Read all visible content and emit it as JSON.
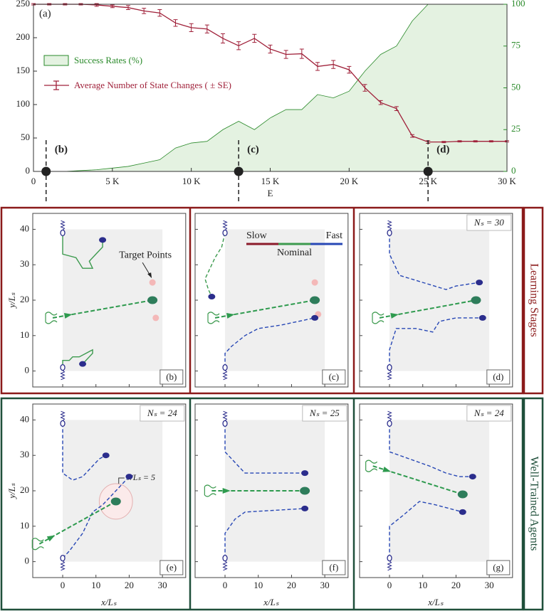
{
  "chart_data": [
    {
      "type": "line",
      "label": "(a)",
      "xlabel": "E",
      "xlim": [
        0,
        30000
      ],
      "xticks": [
        0,
        {
          "value": 5000,
          "label": "5 K"
        },
        {
          "value": 10000,
          "label": "10 K"
        },
        {
          "value": 15000,
          "label": "15 K"
        },
        {
          "value": 20000,
          "label": "20 K"
        },
        {
          "value": 25000,
          "label": "25 K"
        },
        {
          "value": 30000,
          "label": "30 K"
        }
      ],
      "ylim": [
        0,
        250
      ],
      "yticks": [
        0,
        50,
        100,
        150,
        200,
        250
      ],
      "y2lim": [
        0,
        100
      ],
      "y2ticks": [
        0,
        25,
        50,
        75,
        100
      ],
      "x": [
        0,
        1000,
        2000,
        3000,
        4000,
        5000,
        6000,
        7000,
        8000,
        9000,
        10000,
        11000,
        12000,
        13000,
        14000,
        15000,
        16000,
        17000,
        18000,
        19000,
        20000,
        21000,
        22000,
        23000,
        24000,
        25000,
        26000,
        27000,
        28000,
        29000,
        30000
      ],
      "series": [
        {
          "name": "Success Rates (%)",
          "type": "area",
          "axis": "y2",
          "color": "#2a8a2a",
          "fill": "#e4f2e1",
          "values": [
            0,
            0,
            0,
            0.5,
            1,
            2,
            3,
            5,
            7,
            14,
            17,
            18,
            25,
            30,
            25,
            32,
            37,
            37,
            46,
            44,
            48,
            60,
            70,
            75,
            90,
            100,
            100,
            100,
            100,
            100,
            100
          ]
        },
        {
          "name": "Average Number of State Changes ( ± SE)",
          "type": "line",
          "color": "#a0213a",
          "values": [
            250,
            250,
            250,
            250,
            249,
            247,
            245,
            240,
            237,
            222,
            215,
            213,
            199,
            188,
            199,
            183,
            175,
            176,
            157,
            160,
            152,
            125,
            103,
            94,
            53,
            44,
            44,
            45,
            45,
            45,
            45
          ],
          "errors": [
            1,
            1,
            1,
            1,
            2,
            2,
            3,
            4,
            5,
            5,
            6,
            6,
            7,
            6,
            6,
            6,
            6,
            7,
            6,
            6,
            5,
            5,
            3,
            3,
            2,
            2,
            1,
            1,
            1,
            1,
            1
          ]
        }
      ],
      "markers": [
        {
          "label": "(b)",
          "x": 800
        },
        {
          "label": "(c)",
          "x": 13000
        },
        {
          "label": "(d)",
          "x": 25000
        }
      ]
    },
    {
      "type": "trajectory",
      "label": "(b)",
      "xlim": [
        -9,
        37
      ],
      "ylim": [
        -4.5,
        44.5
      ],
      "xticks": [
        0,
        10,
        20,
        30
      ],
      "yticks": [
        0,
        10,
        20,
        30,
        40
      ],
      "annotation": "Target Points",
      "paths": [
        {
          "color": "#3c9a4e",
          "dashed": false,
          "points": [
            [
              0,
              39
            ],
            [
              0,
              33
            ],
            [
              4,
              32
            ],
            [
              6,
              29
            ],
            [
              9,
              29
            ],
            [
              8,
              31
            ],
            [
              10,
              33
            ],
            [
              12,
              35
            ],
            [
              12,
              37
            ]
          ]
        },
        {
          "color": "#3c9a4e",
          "dashed": false,
          "points": [
            [
              0,
              1
            ],
            [
              0,
              3
            ],
            [
              2,
              3
            ],
            [
              3,
              4
            ],
            [
              5,
              4
            ],
            [
              7,
              5
            ],
            [
              9,
              6
            ],
            [
              9,
              5
            ],
            [
              8,
              4
            ],
            [
              6,
              2
            ]
          ]
        }
      ],
      "anchors": [
        [
          0,
          39
        ],
        [
          0,
          1
        ]
      ],
      "agents": [
        [
          12,
          37
        ],
        [
          6,
          2
        ]
      ],
      "target_line": [
        [
          -3,
          15
        ],
        [
          27,
          20
        ]
      ],
      "target": [
        27,
        20
      ],
      "target_points": [
        [
          27,
          25
        ],
        [
          28,
          15
        ]
      ]
    },
    {
      "type": "trajectory",
      "label": "(c)",
      "xlim": [
        -9,
        37
      ],
      "ylim": [
        -4.5,
        44.5
      ],
      "xticks": [
        0,
        10,
        20,
        30
      ],
      "yticks": [
        0,
        10,
        20,
        30,
        40
      ],
      "speed_legend": {
        "labels": [
          "Slow",
          "Nominal",
          "Fast"
        ],
        "colors": [
          "#8b1a2a",
          "#3c9a4e",
          "#2747b5"
        ]
      },
      "paths": [
        {
          "color": "#3c9a4e",
          "dashed": true,
          "points": [
            [
              0,
              39
            ],
            [
              -1,
              35
            ],
            [
              -3,
              32
            ],
            [
              -5,
              28
            ],
            [
              -6,
              26
            ],
            [
              -5,
              23
            ],
            [
              -4,
              21
            ]
          ]
        },
        {
          "color": "#2747b5",
          "dashed": true,
          "points": [
            [
              0,
              1
            ],
            [
              0,
              5
            ],
            [
              2,
              7
            ],
            [
              6,
              10
            ],
            [
              10,
              12
            ],
            [
              17,
              13
            ],
            [
              27,
              15
            ]
          ]
        }
      ],
      "anchors": [
        [
          0,
          39
        ],
        [
          0,
          1
        ]
      ],
      "agents": [
        [
          -4,
          21
        ],
        [
          27,
          15
        ]
      ],
      "target_line": [
        [
          -3,
          15
        ],
        [
          27,
          20
        ]
      ],
      "target": [
        27,
        20
      ],
      "target_points": [
        [
          27,
          25
        ],
        [
          28,
          16
        ]
      ]
    },
    {
      "type": "trajectory",
      "label": "(d)",
      "ns_label": "Nₛ = 30",
      "xlim": [
        -9,
        37
      ],
      "ylim": [
        -4.5,
        44.5
      ],
      "xticks": [
        0,
        10,
        20,
        30
      ],
      "yticks": [
        0,
        10,
        20,
        30,
        40
      ],
      "paths": [
        {
          "color": "#2747b5",
          "dashed": true,
          "points": [
            [
              0,
              39
            ],
            [
              0,
              33
            ],
            [
              3,
              27
            ],
            [
              10,
              25
            ],
            [
              17,
              23
            ],
            [
              20,
              24
            ],
            [
              27,
              25
            ]
          ]
        },
        {
          "color": "#2747b5",
          "dashed": true,
          "points": [
            [
              0,
              1
            ],
            [
              0,
              6
            ],
            [
              2,
              12
            ],
            [
              8,
              12
            ],
            [
              13,
              11
            ],
            [
              15,
              14
            ],
            [
              20,
              15
            ],
            [
              28,
              15
            ]
          ]
        }
      ],
      "anchors": [
        [
          0,
          39
        ],
        [
          0,
          1
        ]
      ],
      "agents": [
        [
          27,
          25
        ],
        [
          28,
          15
        ]
      ],
      "target_line": [
        [
          -3,
          15
        ],
        [
          26,
          20
        ]
      ],
      "target": [
        26,
        20
      ]
    },
    {
      "type": "trajectory",
      "label": "(e)",
      "ns_label": "Nₛ = 24",
      "xlim": [
        -9,
        37
      ],
      "ylim": [
        -4.5,
        44.5
      ],
      "xticks": [
        0,
        10,
        20,
        30
      ],
      "yticks": [
        0,
        10,
        20,
        30,
        40
      ],
      "radius": 5,
      "radius_label": "r/Lₛ = 5",
      "paths": [
        {
          "color": "#2747b5",
          "dashed": true,
          "points": [
            [
              0,
              39
            ],
            [
              0,
              25
            ],
            [
              3,
              23
            ],
            [
              6,
              24
            ],
            [
              9,
              27
            ],
            [
              11,
              29
            ],
            [
              13,
              30
            ]
          ]
        },
        {
          "color": "#2747b5",
          "dashed": true,
          "points": [
            [
              0,
              1
            ],
            [
              2,
              3
            ],
            [
              6,
              8
            ],
            [
              9,
              14
            ],
            [
              12,
              16
            ],
            [
              15,
              19
            ],
            [
              18,
              22
            ],
            [
              20,
              24
            ]
          ]
        }
      ],
      "anchors": [
        [
          0,
          39
        ],
        [
          0,
          1
        ]
      ],
      "agents": [
        [
          13,
          30
        ],
        [
          20,
          24
        ]
      ],
      "target_line": [
        [
          -7,
          5
        ],
        [
          16,
          17
        ]
      ],
      "target": [
        16,
        17
      ]
    },
    {
      "type": "trajectory",
      "label": "(f)",
      "ns_label": "Nₛ = 25",
      "xlim": [
        -9,
        37
      ],
      "ylim": [
        -4.5,
        44.5
      ],
      "xticks": [
        0,
        10,
        20,
        30
      ],
      "yticks": [
        0,
        10,
        20,
        30,
        40
      ],
      "paths": [
        {
          "color": "#2747b5",
          "dashed": true,
          "points": [
            [
              0,
              39
            ],
            [
              0,
              31
            ],
            [
              2,
              29
            ],
            [
              6,
              25
            ],
            [
              24,
              25
            ]
          ]
        },
        {
          "color": "#2747b5",
          "dashed": true,
          "points": [
            [
              0,
              1
            ],
            [
              0,
              8
            ],
            [
              3,
              12
            ],
            [
              6,
              14
            ],
            [
              24,
              15
            ]
          ]
        }
      ],
      "anchors": [
        [
          0,
          39
        ],
        [
          0,
          1
        ]
      ],
      "agents": [
        [
          24,
          25
        ],
        [
          24,
          15
        ]
      ],
      "target_line": [
        [
          -4,
          20
        ],
        [
          24,
          20
        ]
      ],
      "target": [
        24,
        20
      ]
    },
    {
      "type": "trajectory",
      "label": "(g)",
      "ns_label": "Nₛ = 24",
      "xlim": [
        -9,
        37
      ],
      "ylim": [
        -4.5,
        44.5
      ],
      "xticks": [
        0,
        10,
        20,
        30
      ],
      "yticks": [
        0,
        10,
        20,
        30,
        40
      ],
      "paths": [
        {
          "color": "#2747b5",
          "dashed": true,
          "points": [
            [
              0,
              39
            ],
            [
              0,
              31
            ],
            [
              6,
              29
            ],
            [
              12,
              27
            ],
            [
              17,
              25
            ],
            [
              21,
              24
            ],
            [
              25,
              24
            ]
          ]
        },
        {
          "color": "#2747b5",
          "dashed": true,
          "points": [
            [
              0,
              1
            ],
            [
              0,
              10
            ],
            [
              4,
              13
            ],
            [
              9,
              17
            ],
            [
              14,
              16
            ],
            [
              18,
              15
            ],
            [
              22,
              14
            ]
          ]
        }
      ],
      "anchors": [
        [
          0,
          39
        ],
        [
          0,
          1
        ]
      ],
      "agents": [
        [
          25,
          24
        ],
        [
          22,
          14
        ]
      ],
      "target_line": [
        [
          -5,
          27
        ],
        [
          22,
          19
        ]
      ],
      "target": [
        22,
        19
      ]
    }
  ],
  "sections": [
    "Learning Stages",
    "Well-Trained Agents"
  ],
  "axis_labels": {
    "x": "x/Lₛ",
    "y": "y/Lₛ"
  }
}
